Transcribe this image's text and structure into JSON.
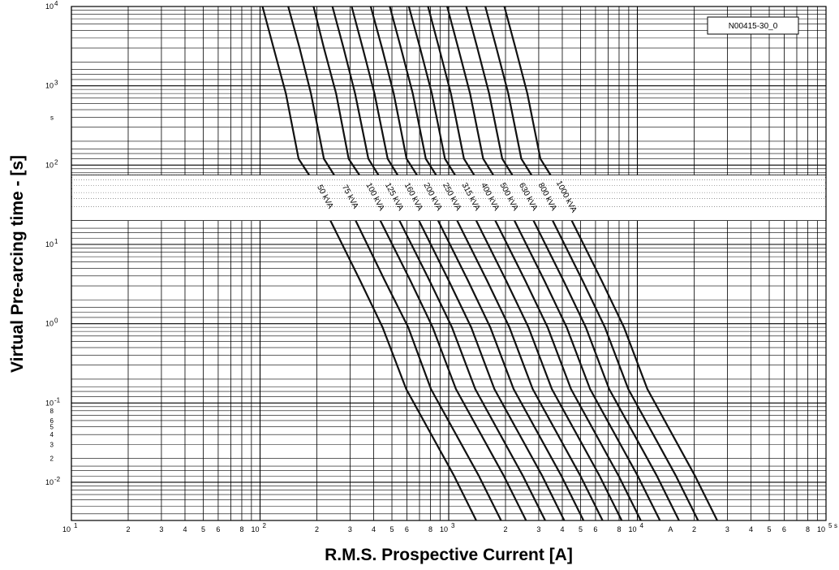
{
  "chart_data": {
    "type": "line",
    "title": "",
    "xlabel": "R.M.S. Prospective Current [A]",
    "ylabel": "Virtual Pre-arcing time - [s]",
    "xscale": "log",
    "yscale": "log",
    "xlim": [
      10,
      100000
    ],
    "ylim": [
      0.0033,
      10000
    ],
    "grid": true,
    "reference_id": "N00415-30_0",
    "x_axis_end_unit": "s",
    "y_axis_unit_note": "s",
    "x_unit_marker": "A",
    "x_major_ticks": [
      {
        "value": 10,
        "label": "10",
        "exp": "1"
      },
      {
        "value": 100,
        "label": "10",
        "exp": "2"
      },
      {
        "value": 1000,
        "label": "10",
        "exp": "3"
      },
      {
        "value": 10000,
        "label": "10",
        "exp": "4"
      },
      {
        "value": 100000,
        "label": "10",
        "exp": "5"
      }
    ],
    "x_minor_labels": [
      "2",
      "3",
      "4",
      "5",
      "6",
      "8"
    ],
    "y_major_ticks": [
      {
        "value": 10000,
        "label": "10",
        "exp": "4"
      },
      {
        "value": 1000,
        "label": "10",
        "exp": "3"
      },
      {
        "value": 100,
        "label": "10",
        "exp": "2"
      },
      {
        "value": 10,
        "label": "10",
        "exp": "1"
      },
      {
        "value": 1,
        "label": "10",
        "exp": "0"
      },
      {
        "value": 0.1,
        "label": "10",
        "exp": "-1"
      },
      {
        "value": 0.01,
        "label": "10",
        "exp": "-2"
      }
    ],
    "y_minor_labels": [
      {
        "value": 0.08,
        "label": "8"
      },
      {
        "value": 0.06,
        "label": "6"
      },
      {
        "value": 0.05,
        "label": "5"
      },
      {
        "value": 0.04,
        "label": "4"
      },
      {
        "value": 0.03,
        "label": "3"
      },
      {
        "value": 0.02,
        "label": "2"
      }
    ],
    "label_band": [
      20,
      75
    ],
    "series": [
      {
        "name": "50 kVA",
        "x": [
          103,
          118,
          137,
          160,
          182,
          236,
          339,
          446,
          595,
          1069,
          1399
        ],
        "y": [
          10000,
          3000,
          800,
          120,
          75,
          20,
          3.5,
          0.9,
          0.15,
          0.012,
          0.0033
        ]
      },
      {
        "name": "75 kVA",
        "x": [
          141,
          162,
          186,
          218,
          247,
          321,
          458,
          610,
          805,
          1446,
          1895
        ],
        "y": [
          10000,
          3000,
          800,
          120,
          75,
          20,
          3.5,
          0.9,
          0.15,
          0.012,
          0.0033
        ]
      },
      {
        "name": "100 kVA",
        "x": [
          192,
          218,
          253,
          295,
          336,
          434,
          626,
          822,
          1092,
          1961,
          2570
        ],
        "y": [
          10000,
          3000,
          800,
          120,
          75,
          20,
          3.5,
          0.9,
          0.15,
          0.012,
          0.0033
        ]
      },
      {
        "name": "125 kVA",
        "x": [
          242,
          277,
          319,
          375,
          424,
          548,
          791,
          1040,
          1383,
          2475,
          3246
        ],
        "y": [
          10000,
          3000,
          800,
          120,
          75,
          20,
          3.5,
          0.9,
          0.15,
          0.012,
          0.0033
        ]
      },
      {
        "name": "160 kVA",
        "x": [
          306,
          350,
          404,
          475,
          536,
          695,
          1000,
          1315,
          1747,
          3134,
          4098
        ],
        "y": [
          10000,
          3000,
          800,
          120,
          75,
          20,
          3.5,
          0.9,
          0.15,
          0.012,
          0.0033
        ]
      },
      {
        "name": "200 kVA",
        "x": [
          386,
          443,
          511,
          598,
          678,
          878,
          1264,
          1661,
          2209,
          3956,
          5180
        ],
        "y": [
          10000,
          3000,
          800,
          120,
          75,
          20,
          3.5,
          0.9,
          0.15,
          0.012,
          0.0033
        ]
      },
      {
        "name": "250 kVA",
        "x": [
          487,
          558,
          645,
          756,
          857,
          1109,
          1596,
          2097,
          2788,
          4995,
          6539
        ],
        "y": [
          10000,
          3000,
          800,
          120,
          75,
          20,
          3.5,
          0.9,
          0.15,
          0.012,
          0.0033
        ]
      },
      {
        "name": "315 kVA",
        "x": [
          615,
          705,
          814,
          955,
          1080,
          1399,
          2014,
          2648,
          3522,
          6307,
          8259
        ],
        "y": [
          10000,
          3000,
          800,
          120,
          75,
          20,
          3.5,
          0.9,
          0.15,
          0.012,
          0.0033
        ]
      },
      {
        "name": "400 kVA",
        "x": [
          777,
          889,
          1027,
          1205,
          1364,
          1766,
          2544,
          3345,
          4447,
          7963,
          10428
        ],
        "y": [
          10000,
          3000,
          800,
          120,
          75,
          20,
          3.5,
          0.9,
          0.15,
          0.012,
          0.0033
        ]
      },
      {
        "name": "500 kVA",
        "x": [
          981,
          1123,
          1298,
          1523,
          1722,
          2230,
          3212,
          4222,
          5614,
          10053,
          13166
        ],
        "y": [
          10000,
          3000,
          800,
          120,
          75,
          20,
          3.5,
          0.9,
          0.15,
          0.012,
          0.0033
        ]
      },
      {
        "name": "630 kVA",
        "x": [
          1238,
          1418,
          1638,
          1922,
          2174,
          2816,
          4055,
          5330,
          7088,
          12692,
          16622
        ],
        "y": [
          10000,
          3000,
          800,
          120,
          75,
          20,
          3.5,
          0.9,
          0.15,
          0.012,
          0.0033
        ]
      },
      {
        "name": "800 kVA",
        "x": [
          1563,
          1790,
          2068,
          2426,
          2745,
          3555,
          5119,
          6729,
          8948,
          16023,
          20985
        ],
        "y": [
          10000,
          3000,
          800,
          120,
          75,
          20,
          3.5,
          0.9,
          0.15,
          0.012,
          0.0033
        ]
      },
      {
        "name": "1000 kVA",
        "x": [
          1973,
          2260,
          2611,
          3063,
          3465,
          4488,
          6463,
          8495,
          11297,
          20229,
          26492
        ],
        "y": [
          10000,
          3000,
          800,
          120,
          75,
          20,
          3.5,
          0.9,
          0.15,
          0.012,
          0.0033
        ]
      }
    ],
    "curve_labels": [
      "50 kVA",
      "75 kVA",
      "100 kVA",
      "125 kVA",
      "160 kVA",
      "200 kVA",
      "250 kVA",
      "315 kVA",
      "400 kVA",
      "500 kVA",
      "630 kVA",
      "800 kVA",
      "1000 kVA"
    ]
  }
}
